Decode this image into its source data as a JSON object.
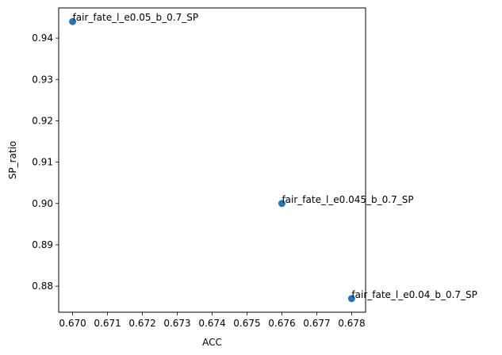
{
  "chart_data": {
    "type": "scatter",
    "xlabel": "ACC",
    "ylabel": "SP_ratio",
    "xlim": [
      0.6696,
      0.6784
    ],
    "ylim": [
      0.8737,
      0.9473
    ],
    "xticks": [
      0.67,
      0.671,
      0.672,
      0.673,
      0.674,
      0.675,
      0.676,
      0.677,
      0.678
    ],
    "yticks": [
      0.88,
      0.89,
      0.9,
      0.91,
      0.92,
      0.93,
      0.94
    ],
    "grid": false,
    "colors": {
      "marker": "#1f77b4"
    },
    "series": [
      {
        "points": [
          {
            "x": 0.67,
            "y": 0.944,
            "label": "fair_fate_l_e0.05_b_0.7_SP"
          },
          {
            "x": 0.676,
            "y": 0.9,
            "label": "fair_fate_l_e0.045_b_0.7_SP"
          },
          {
            "x": 0.678,
            "y": 0.877,
            "label": "fair_fate_l_e0.04_b_0.7_SP"
          }
        ]
      }
    ]
  }
}
